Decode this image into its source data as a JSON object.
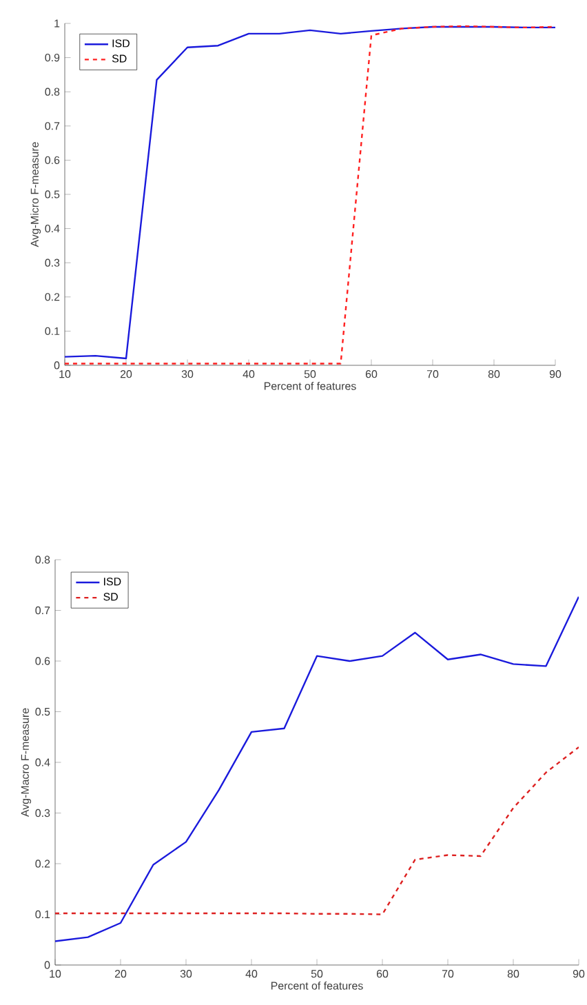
{
  "chart_data": [
    {
      "type": "line",
      "xlabel": "Percent of features",
      "ylabel": "Avg-Micro F-measure",
      "xlim": [
        10,
        90
      ],
      "ylim": [
        0,
        1
      ],
      "xticks": [
        10,
        20,
        30,
        40,
        50,
        60,
        70,
        80,
        90
      ],
      "yticks": [
        0,
        0.1,
        0.2,
        0.3,
        0.4,
        0.5,
        0.6,
        0.7,
        0.8,
        0.9,
        1
      ],
      "legend": "top left",
      "x": [
        10,
        15,
        20,
        25,
        30,
        35,
        40,
        45,
        50,
        55,
        60,
        65,
        70,
        75,
        80,
        85,
        90
      ],
      "series": [
        {
          "name": "ISD",
          "color": "#1a1adc",
          "line_style": "solid",
          "values": [
            0.025,
            0.028,
            0.02,
            0.835,
            0.93,
            0.935,
            0.97,
            0.97,
            0.98,
            0.97,
            0.978,
            0.985,
            0.99,
            0.99,
            0.99,
            0.988,
            0.988
          ]
        },
        {
          "name": "SD",
          "color": "#ff2020",
          "line_style": "dashed",
          "values": [
            0.005,
            0.005,
            0.005,
            0.005,
            0.005,
            0.005,
            0.005,
            0.005,
            0.005,
            0.005,
            0.965,
            0.985,
            0.99,
            0.992,
            0.99,
            0.988,
            0.99
          ]
        }
      ]
    },
    {
      "type": "line",
      "xlabel": "Percent of features",
      "ylabel": "Avg-Macro F-measure",
      "xlim": [
        10,
        90
      ],
      "ylim": [
        0,
        0.8
      ],
      "xticks": [
        10,
        20,
        30,
        40,
        50,
        60,
        70,
        80,
        90
      ],
      "yticks": [
        0,
        0.1,
        0.2,
        0.3,
        0.4,
        0.5,
        0.6,
        0.7,
        0.8
      ],
      "legend": "top left",
      "x": [
        10,
        15,
        20,
        25,
        30,
        35,
        40,
        45,
        50,
        55,
        60,
        65,
        70,
        75,
        80,
        85,
        90
      ],
      "series": [
        {
          "name": "ISD",
          "color": "#1a1adc",
          "line_style": "solid",
          "values": [
            0.047,
            0.055,
            0.083,
            0.198,
            0.243,
            0.345,
            0.46,
            0.467,
            0.61,
            0.6,
            0.61,
            0.656,
            0.603,
            0.613,
            0.594,
            0.59,
            0.727
          ]
        },
        {
          "name": "SD",
          "color": "#dd2020",
          "line_style": "dashed",
          "values": [
            0.102,
            0.102,
            0.102,
            0.102,
            0.102,
            0.102,
            0.102,
            0.102,
            0.101,
            0.101,
            0.1,
            0.208,
            0.217,
            0.215,
            0.31,
            0.38,
            0.43
          ]
        }
      ]
    }
  ]
}
